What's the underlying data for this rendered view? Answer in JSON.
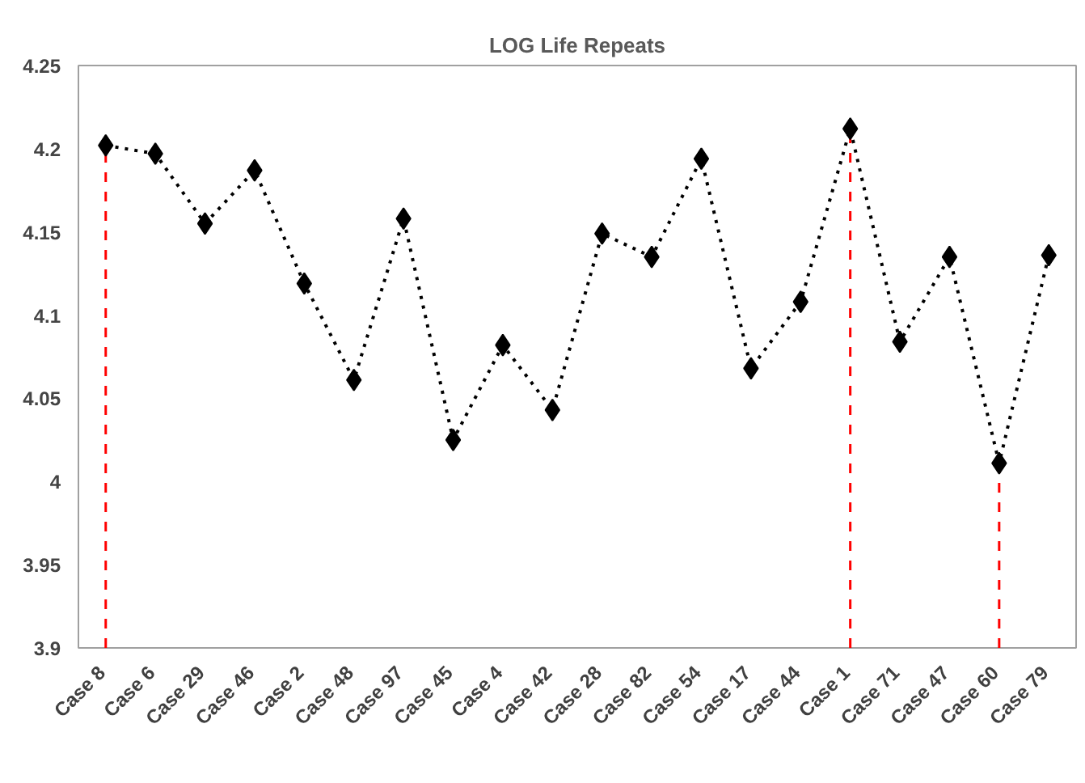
{
  "chart_data": {
    "type": "line",
    "title": "LOG Life Repeats",
    "categories": [
      "Case  8",
      "Case  6",
      "Case  29",
      "Case  46",
      "Case  2",
      "Case  48",
      "Case  97",
      "Case  45",
      "Case  4",
      "Case  42",
      "Case  28",
      "Case  82",
      "Case  54",
      "Case  17",
      "Case  44",
      "Case  1",
      "Case  71",
      "Case  47",
      "Case  60",
      "Case  79"
    ],
    "series": [
      {
        "color": "#000000",
        "values": [
          4.202,
          4.197,
          4.155,
          4.187,
          4.119,
          4.061,
          4.158,
          4.025,
          4.082,
          4.043,
          4.149,
          4.135,
          4.194,
          4.068,
          4.108,
          4.212,
          4.084,
          4.135,
          4.011,
          4.136
        ]
      }
    ],
    "ylim": [
      3.9,
      4.25
    ],
    "yticks": [
      3.9,
      3.95,
      4,
      4.05,
      4.1,
      4.15,
      4.2,
      4.25
    ],
    "ref_lines": [
      {
        "axis": "x",
        "value": "Case  8",
        "color": "#ff0000",
        "line_style": "dashed"
      },
      {
        "axis": "x",
        "value": "Case  1",
        "color": "#ff0000",
        "line_style": "dashed"
      },
      {
        "axis": "x",
        "value": "Case  60",
        "color": "#ff0000",
        "line_style": "dashed"
      }
    ],
    "marker": "diamond",
    "line_style": "dotted",
    "grid": false
  }
}
